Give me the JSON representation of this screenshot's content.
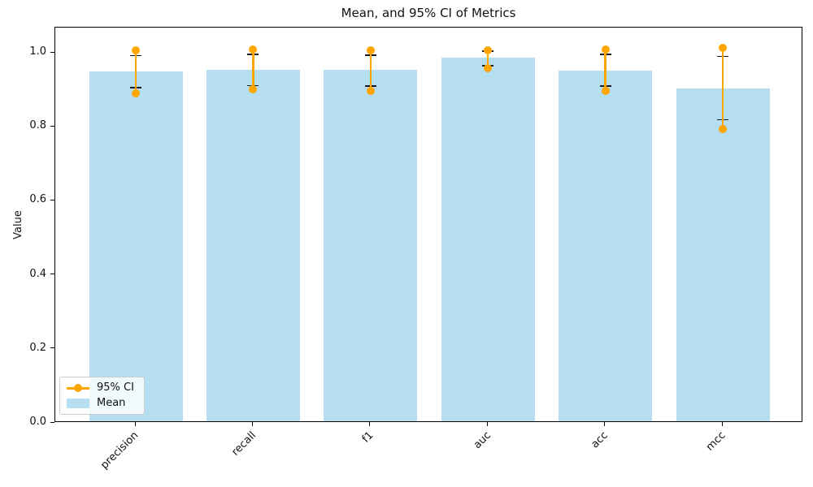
{
  "chart_data": {
    "type": "bar",
    "title": "Mean, and 95% CI of Metrics",
    "ylabel": "Value",
    "xlabel": "",
    "categories": [
      "precision",
      "recall",
      "f1",
      "auc",
      "acc",
      "mcc"
    ],
    "series": [
      {
        "name": "Mean",
        "kind": "bar",
        "values": [
          0.95,
          0.954,
          0.953,
          0.986,
          0.952,
          0.904
        ]
      },
      {
        "name": "95% CI",
        "kind": "ci-interval-with-markers",
        "low": [
          0.891,
          0.901,
          0.897,
          0.959,
          0.896,
          0.793
        ],
        "high": [
          1.007,
          1.008,
          1.007,
          1.007,
          1.008,
          1.014
        ]
      },
      {
        "name": "error-caps",
        "kind": "capped-error-bar",
        "low": [
          0.906,
          0.911,
          0.91,
          0.965,
          0.91,
          0.819
        ],
        "high": [
          0.992,
          0.996,
          0.994,
          1.005,
          0.996,
          0.99
        ]
      }
    ],
    "yticks": [
      0.0,
      0.2,
      0.4,
      0.6,
      0.8,
      1.0
    ],
    "ylim": [
      0,
      1.068
    ],
    "grid": false,
    "legend": {
      "position": "lower-left",
      "entries": [
        "95% CI",
        "Mean"
      ]
    },
    "colors": {
      "bar": "#b5def0",
      "ci": "#ffa500",
      "caps": "#1a1a1a",
      "spine": "#000000"
    }
  }
}
